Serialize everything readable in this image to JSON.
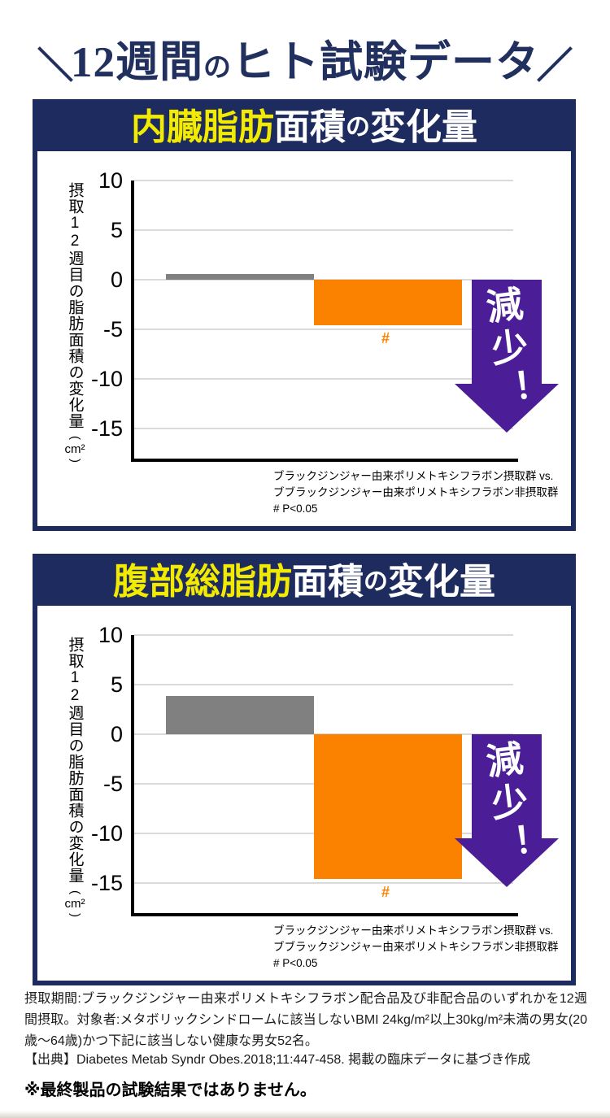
{
  "main_title": {
    "pre": "12週間",
    "small": "の",
    "post": "ヒト試験データ"
  },
  "charts": [
    {
      "header": {
        "highlight": "内臓脂肪",
        "rest1": "面積",
        "small": "の",
        "rest2": "変化量"
      },
      "chart_data": {
        "type": "bar",
        "title": "内臓脂肪面積の変化量",
        "ylabel": "摂取12週目の脂肪面積の変化量",
        "ylabel_unit": "cm²",
        "unit_open": "(",
        "unit_close": ")",
        "ylim": [
          -18,
          10
        ],
        "yticks": [
          10,
          5,
          0,
          -5,
          -10,
          -15
        ],
        "grid": true,
        "values": [
          0.6,
          -4.6
        ],
        "bar_colors": [
          "#808080",
          "#fb8200"
        ],
        "sig_marker": "#",
        "annotation": "減少！"
      },
      "footnote": [
        "ブラックジンジャー由来ポリメトキシフラボン摂取群 vs.",
        "ブブラックジンジャー由来ポリメトキシフラボン非摂取群",
        "# P<0.05"
      ]
    },
    {
      "header": {
        "highlight": "腹部総脂肪",
        "rest1": "面積",
        "small": "の",
        "rest2": "変化量"
      },
      "chart_data": {
        "type": "bar",
        "title": "腹部総脂肪面積の変化量",
        "ylabel": "摂取12週目の脂肪面積の変化量",
        "ylabel_unit": "cm²",
        "unit_open": "(",
        "unit_close": ")",
        "ylim": [
          -18,
          10
        ],
        "yticks": [
          10,
          5,
          0,
          -5,
          -10,
          -15
        ],
        "grid": true,
        "values": [
          3.9,
          -14.6
        ],
        "bar_colors": [
          "#808080",
          "#fb8200"
        ],
        "sig_marker": "#",
        "annotation": "減少！"
      },
      "footnote": [
        "ブラックジンジャー由来ポリメトキシフラボン摂取群 vs.",
        "ブブラックジンジャー由来ポリメトキシフラボン非摂取群",
        "# P<0.05"
      ]
    }
  ],
  "footer": {
    "study_note": "摂取期間:ブラックジンジャー由来ポリメトキシフラボン配合品及び非配合品のいずれかを12週間摂取。対象者:メタボリックシンドロームに該当しないBMI 24kg/m²以上30kg/m²未満の男女(20歳〜64歳)かつ下記に該当しない健康な男女52名。",
    "source": "【出典】Diabetes Metab Syndr Obes.2018;11:447-458. 掲載の臨床データに基づき作成",
    "disclaimer": "※最終製品の試験結果ではありません。"
  },
  "colors": {
    "navy": "#1e2b5e",
    "yellow": "#f2ea00",
    "orange": "#fb8200",
    "gray": "#808080",
    "purple": "#4b1d96"
  }
}
